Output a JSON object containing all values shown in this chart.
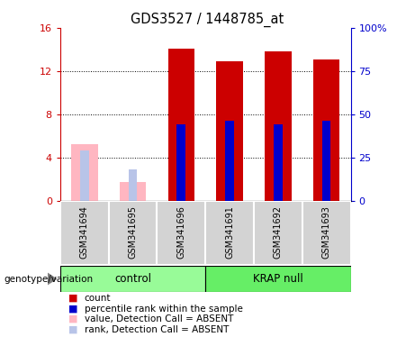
{
  "title": "GDS3527 / 1448785_at",
  "samples": [
    "GSM341694",
    "GSM341695",
    "GSM341696",
    "GSM341691",
    "GSM341692",
    "GSM341693"
  ],
  "count_values": [
    null,
    null,
    14.1,
    12.9,
    13.8,
    13.1
  ],
  "count_absent_values": [
    5.2,
    1.7,
    null,
    null,
    null,
    null
  ],
  "percentile_values": [
    null,
    null,
    44.0,
    46.0,
    44.0,
    46.0
  ],
  "percentile_absent_values": [
    29.0,
    18.0,
    null,
    null,
    null,
    null
  ],
  "ylim_left": [
    0,
    16
  ],
  "ylim_right": [
    0,
    100
  ],
  "yticks_left": [
    0,
    4,
    8,
    12,
    16
  ],
  "yticks_right": [
    0,
    25,
    50,
    75,
    100
  ],
  "yticklabels_left": [
    "0",
    "4",
    "8",
    "12",
    "16"
  ],
  "yticklabels_right": [
    "0",
    "25",
    "50",
    "75",
    "100%"
  ],
  "color_count": "#cc0000",
  "color_percentile": "#0000cc",
  "color_count_absent": "#ffb6c1",
  "color_percentile_absent": "#b8c4e8",
  "legend_items": [
    "count",
    "percentile rank within the sample",
    "value, Detection Call = ABSENT",
    "rank, Detection Call = ABSENT"
  ],
  "legend_colors": [
    "#cc0000",
    "#0000cc",
    "#ffb6c1",
    "#b8c4e8"
  ],
  "bar_width": 0.55,
  "percentile_bar_width": 0.18,
  "group_labels": [
    "control",
    "KRAP null"
  ],
  "group_color_control": "#98fb98",
  "group_color_krap": "#66ee66",
  "sample_bg": "#d3d3d3",
  "genotype_label": "genotype/variation"
}
